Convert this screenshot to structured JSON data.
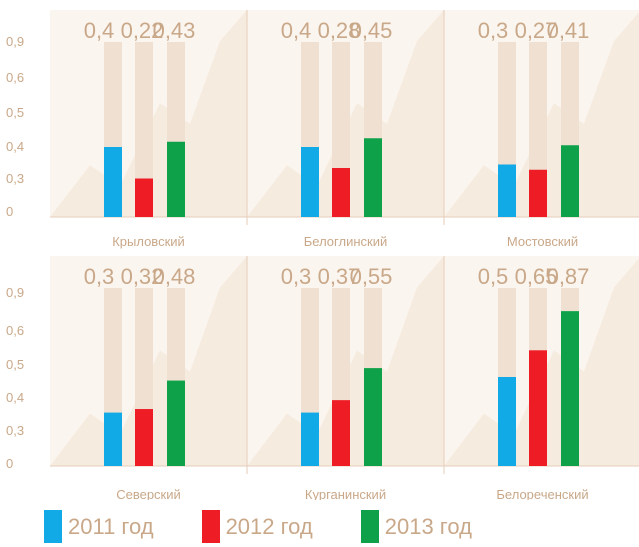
{
  "colors": {
    "background_panel": "#fbf5ef",
    "background_rays": "#f6ebdf",
    "track": "#efe0d1",
    "divider": "#e6cdb8",
    "text": "#c9a889",
    "series_2011": "#12a9e7",
    "series_2012": "#ee1c25",
    "series_2013": "#0fa14a"
  },
  "chart_data": {
    "type": "bar",
    "y_tick_labels": [
      "0",
      "0,3",
      "0,4",
      "0,5",
      "0,6",
      "0,9"
    ],
    "ylim": [
      0,
      1
    ],
    "series": [
      {
        "name": "2011 год",
        "color": "#12a9e7"
      },
      {
        "name": "2012 год",
        "color": "#ee1c25"
      },
      {
        "name": "2013 год",
        "color": "#0fa14a"
      }
    ],
    "panels": [
      {
        "category": "Крыловский",
        "values": [
          0.4,
          0.22,
          0.43
        ],
        "labels": [
          "0,4",
          "0,22",
          "0,43"
        ]
      },
      {
        "category": "Белоглинский",
        "values": [
          0.4,
          0.28,
          0.45
        ],
        "labels": [
          "0,4",
          "0,28",
          "0,45"
        ]
      },
      {
        "category": "Мостовский",
        "values": [
          0.3,
          0.27,
          0.41
        ],
        "labels": [
          "0,3",
          "0,27",
          "0,41"
        ]
      },
      {
        "category": "Северский",
        "values": [
          0.3,
          0.32,
          0.48
        ],
        "labels": [
          "0,3",
          "0,32",
          "0,48"
        ]
      },
      {
        "category": "Курганинский",
        "values": [
          0.3,
          0.37,
          0.55
        ],
        "labels": [
          "0,3",
          "0,37",
          "0,55"
        ]
      },
      {
        "category": "Белореченский",
        "values": [
          0.5,
          0.65,
          0.87
        ],
        "labels": [
          "0,5",
          "0,65",
          "0,87"
        ]
      }
    ]
  },
  "legend": {
    "items": [
      "2011 год",
      "2012 год",
      "2013 год"
    ]
  }
}
